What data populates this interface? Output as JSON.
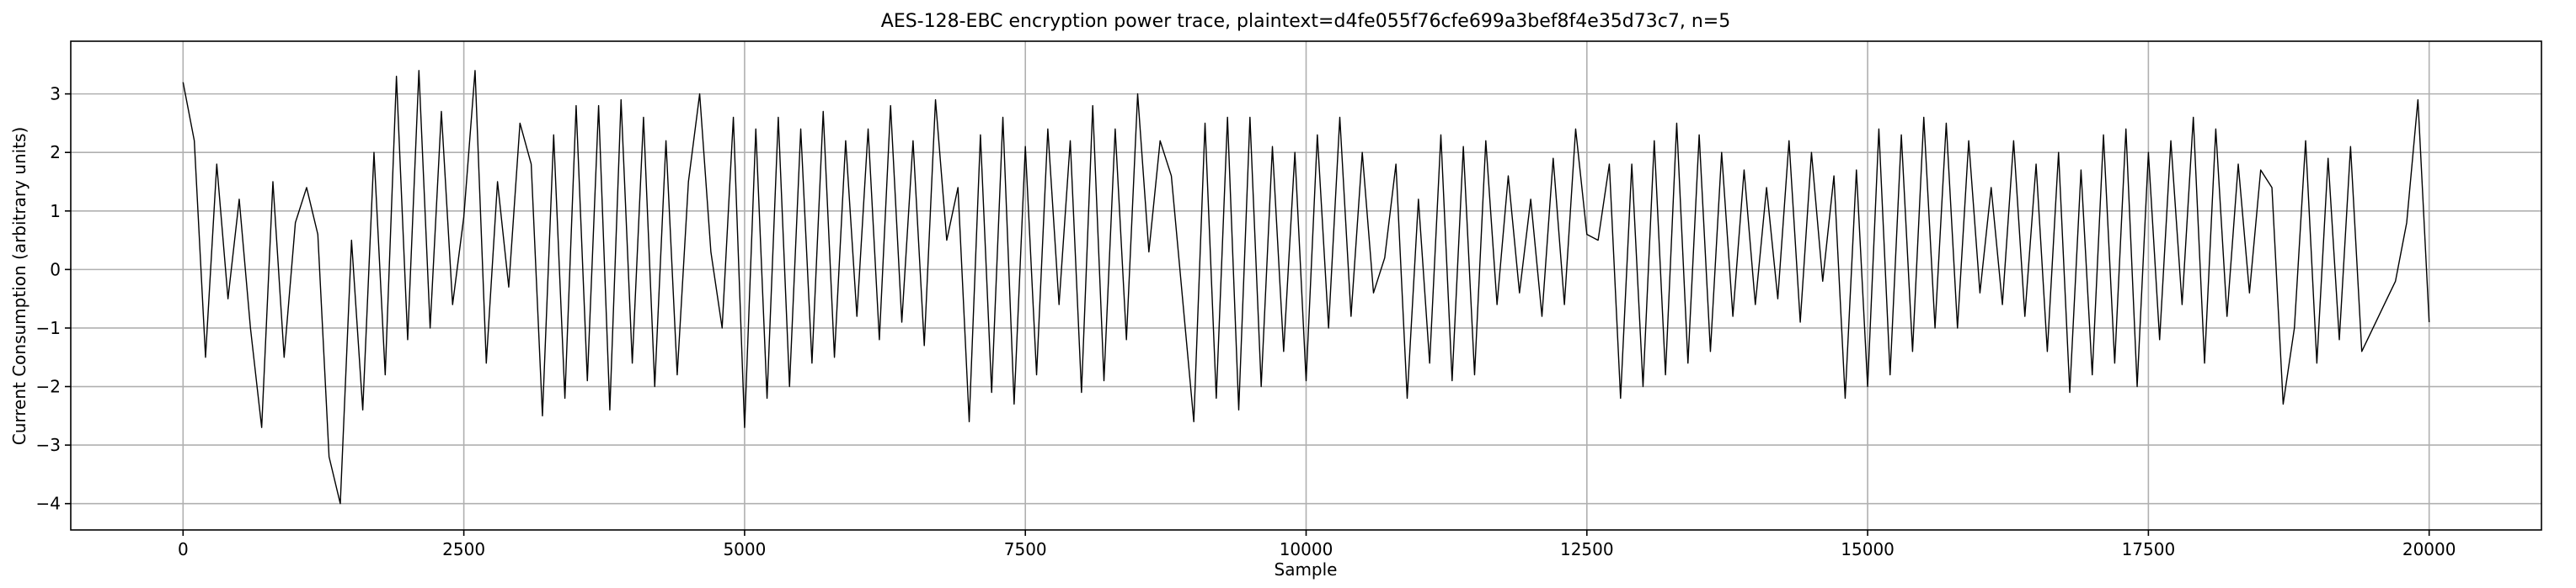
{
  "chart_data": {
    "type": "line",
    "title": "AES-128-EBC encryption power trace, plaintext=d4fe055f76cfe699a3bef8f4e35d73c7, n=5",
    "xlabel": "Sample",
    "ylabel": "Current Consumption (arbitrary units)",
    "color": "#000000",
    "grid": true,
    "xlim": [
      -1000,
      21000
    ],
    "ylim": [
      -4.45,
      3.9
    ],
    "xticks": [
      0,
      2500,
      5000,
      7500,
      10000,
      12500,
      15000,
      17500,
      20000
    ],
    "yticks": [
      {
        "value": -4,
        "label": "−4"
      },
      {
        "value": -3,
        "label": "−3"
      },
      {
        "value": -2,
        "label": "−2"
      },
      {
        "value": -1,
        "label": "−1"
      },
      0,
      1,
      2,
      3
    ],
    "x": [
      0,
      100,
      200,
      300,
      400,
      500,
      600,
      700,
      800,
      900,
      1000,
      1100,
      1200,
      1300,
      1400,
      1500,
      1600,
      1700,
      1800,
      1900,
      2000,
      2100,
      2200,
      2300,
      2400,
      2500,
      2600,
      2700,
      2800,
      2900,
      3000,
      3100,
      3200,
      3300,
      3400,
      3500,
      3600,
      3700,
      3800,
      3900,
      4000,
      4100,
      4200,
      4300,
      4400,
      4500,
      4600,
      4700,
      4800,
      4900,
      5000,
      5100,
      5200,
      5300,
      5400,
      5500,
      5600,
      5700,
      5800,
      5900,
      6000,
      6100,
      6200,
      6300,
      6400,
      6500,
      6600,
      6700,
      6800,
      6900,
      7000,
      7100,
      7200,
      7300,
      7400,
      7500,
      7600,
      7700,
      7800,
      7900,
      8000,
      8100,
      8200,
      8300,
      8400,
      8500,
      8600,
      8700,
      8800,
      8900,
      9000,
      9100,
      9200,
      9300,
      9400,
      9500,
      9600,
      9700,
      9800,
      9900,
      10000,
      10100,
      10200,
      10300,
      10400,
      10500,
      10600,
      10700,
      10800,
      10900,
      11000,
      11100,
      11200,
      11300,
      11400,
      11500,
      11600,
      11700,
      11800,
      11900,
      12000,
      12100,
      12200,
      12300,
      12400,
      12500,
      12600,
      12700,
      12800,
      12900,
      13000,
      13100,
      13200,
      13300,
      13400,
      13500,
      13600,
      13700,
      13800,
      13900,
      14000,
      14100,
      14200,
      14300,
      14400,
      14500,
      14600,
      14700,
      14800,
      14900,
      15000,
      15100,
      15200,
      15300,
      15400,
      15500,
      15600,
      15700,
      15800,
      15900,
      16000,
      16100,
      16200,
      16300,
      16400,
      16500,
      16600,
      16700,
      16800,
      16900,
      17000,
      17100,
      17200,
      17300,
      17400,
      17500,
      17600,
      17700,
      17800,
      17900,
      18000,
      18100,
      18200,
      18300,
      18400,
      18500,
      18600,
      18700,
      18800,
      18900,
      19000,
      19100,
      19200,
      19300,
      19400,
      19500,
      19600,
      19700,
      19800,
      19900,
      20000
    ],
    "values": [
      3.2,
      2.2,
      -1.5,
      1.8,
      -0.5,
      1.2,
      -1.0,
      -2.7,
      1.5,
      -1.5,
      0.8,
      1.4,
      0.6,
      -3.2,
      -4.0,
      0.5,
      -2.4,
      2.0,
      -1.8,
      3.3,
      -1.2,
      3.4,
      -1.0,
      2.7,
      -0.6,
      0.9,
      3.4,
      -1.6,
      1.5,
      -0.3,
      2.5,
      1.8,
      -2.5,
      2.3,
      -2.2,
      2.8,
      -1.9,
      2.8,
      -2.4,
      2.9,
      -1.6,
      2.6,
      -2.0,
      2.2,
      -1.8,
      1.5,
      3.0,
      0.3,
      -1.0,
      2.6,
      -2.7,
      2.4,
      -2.2,
      2.6,
      -2.0,
      2.4,
      -1.6,
      2.7,
      -1.5,
      2.2,
      -0.8,
      2.4,
      -1.2,
      2.8,
      -0.9,
      2.2,
      -1.3,
      2.9,
      0.5,
      1.4,
      -2.6,
      2.3,
      -2.1,
      2.6,
      -2.3,
      2.1,
      -1.8,
      2.4,
      -0.6,
      2.2,
      -2.1,
      2.8,
      -1.9,
      2.4,
      -1.2,
      3.0,
      0.3,
      2.2,
      1.6,
      -0.5,
      -2.6,
      2.5,
      -2.2,
      2.6,
      -2.4,
      2.6,
      -2.0,
      2.1,
      -1.4,
      2.0,
      -1.9,
      2.3,
      -1.0,
      2.6,
      -0.8,
      2.0,
      -0.4,
      0.2,
      1.8,
      -2.2,
      1.2,
      -1.6,
      2.3,
      -1.9,
      2.1,
      -1.8,
      2.2,
      -0.6,
      1.6,
      -0.4,
      1.2,
      -0.8,
      1.9,
      -0.6,
      2.4,
      0.6,
      0.5,
      1.8,
      -2.2,
      1.8,
      -2.0,
      2.2,
      -1.8,
      2.5,
      -1.6,
      2.3,
      -1.4,
      2.0,
      -0.8,
      1.7,
      -0.6,
      1.4,
      -0.5,
      2.2,
      -0.9,
      2.0,
      -0.2,
      1.6,
      -2.2,
      1.7,
      -2.0,
      2.4,
      -1.8,
      2.3,
      -1.4,
      2.6,
      -1.0,
      2.5,
      -1.0,
      2.2,
      -0.4,
      1.4,
      -0.6,
      2.2,
      -0.8,
      1.8,
      -1.4,
      2.0,
      -2.1,
      1.7,
      -1.8,
      2.3,
      -1.6,
      2.4,
      -2.0,
      2.0,
      -1.2,
      2.2,
      -0.6,
      2.6,
      -1.6,
      2.4,
      -0.8,
      1.8,
      -0.4,
      1.7,
      1.4,
      -2.3,
      -1.0,
      2.2,
      -1.6,
      1.9,
      -1.2,
      2.1,
      -1.4,
      -1.0,
      -0.6,
      -0.2,
      0.8,
      2.9,
      -0.9
    ]
  }
}
